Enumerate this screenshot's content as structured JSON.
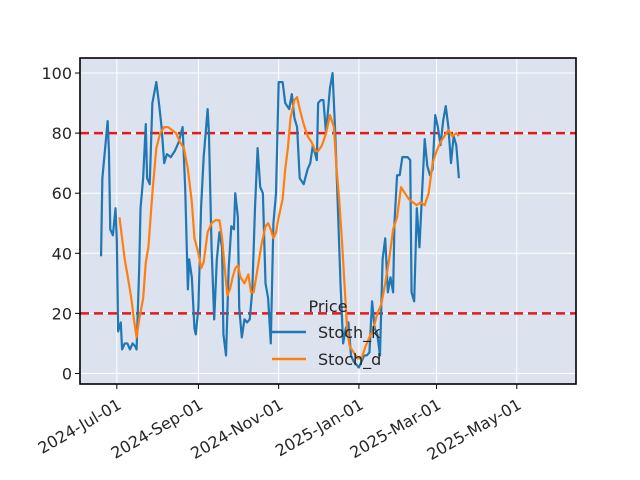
{
  "chart_data": {
    "type": "line",
    "title": "",
    "xlabel": "",
    "ylabel": "",
    "x_range": [
      "2024-06-03",
      "2025-06-15"
    ],
    "ylim": [
      -3.5,
      105
    ],
    "grid": true,
    "legend_placement": "lower-center",
    "legend_title": "Price",
    "yticks": [
      0,
      20,
      40,
      60,
      80,
      100
    ],
    "ytick_labels": [
      "0",
      "20",
      "40",
      "60",
      "80",
      "100"
    ],
    "xticks": [
      "2024-07-01",
      "2024-09-01",
      "2024-11-01",
      "2025-01-01",
      "2025-03-01",
      "2025-05-01"
    ],
    "xtick_labels": [
      "2024-Jul-01",
      "2024-Sep-01",
      "2024-Nov-01",
      "2025-Jan-01",
      "2025-Mar-01",
      "2025-May-01"
    ],
    "reference_lines": [
      {
        "y": 80,
        "color": "#e31a1c",
        "style": "dashed"
      },
      {
        "y": 20,
        "color": "#e31a1c",
        "style": "dashed"
      }
    ],
    "series": [
      {
        "name": "Stoch_k",
        "color": "#1f77b4",
        "points": [
          [
            "2024-06-19",
            39
          ],
          [
            "2024-06-20",
            65
          ],
          [
            "2024-06-24",
            84
          ],
          [
            "2024-06-25",
            74
          ],
          [
            "2024-06-26",
            48
          ],
          [
            "2024-06-28",
            46
          ],
          [
            "2024-06-30",
            55
          ],
          [
            "2024-07-01",
            44
          ],
          [
            "2024-07-02",
            14
          ],
          [
            "2024-07-04",
            17
          ],
          [
            "2024-07-05",
            8
          ],
          [
            "2024-07-07",
            10
          ],
          [
            "2024-07-09",
            10
          ],
          [
            "2024-07-11",
            8
          ],
          [
            "2024-07-13",
            10
          ],
          [
            "2024-07-15",
            9
          ],
          [
            "2024-07-16",
            8
          ],
          [
            "2024-07-18",
            35
          ],
          [
            "2024-07-19",
            55
          ],
          [
            "2024-07-21",
            65
          ],
          [
            "2024-07-23",
            83
          ],
          [
            "2024-07-24",
            65
          ],
          [
            "2024-07-26",
            63
          ],
          [
            "2024-07-28",
            90
          ],
          [
            "2024-07-31",
            97
          ],
          [
            "2024-08-02",
            90
          ],
          [
            "2024-08-04",
            82
          ],
          [
            "2024-08-06",
            70
          ],
          [
            "2024-08-08",
            73
          ],
          [
            "2024-08-11",
            72
          ],
          [
            "2024-08-14",
            74
          ],
          [
            "2024-08-17",
            77
          ],
          [
            "2024-08-20",
            82
          ],
          [
            "2024-08-22",
            61
          ],
          [
            "2024-08-24",
            28
          ],
          [
            "2024-08-25",
            38
          ],
          [
            "2024-08-27",
            32
          ],
          [
            "2024-08-29",
            15
          ],
          [
            "2024-08-30",
            13
          ],
          [
            "2024-09-01",
            22
          ],
          [
            "2024-09-03",
            55
          ],
          [
            "2024-09-05",
            72
          ],
          [
            "2024-09-08",
            88
          ],
          [
            "2024-09-09",
            80
          ],
          [
            "2024-09-11",
            42
          ],
          [
            "2024-09-13",
            18
          ],
          [
            "2024-09-15",
            38
          ],
          [
            "2024-09-17",
            47
          ],
          [
            "2024-09-19",
            42
          ],
          [
            "2024-09-20",
            13
          ],
          [
            "2024-09-22",
            6
          ],
          [
            "2024-09-24",
            35
          ],
          [
            "2024-09-26",
            49
          ],
          [
            "2024-09-28",
            48
          ],
          [
            "2024-09-29",
            60
          ],
          [
            "2024-10-01",
            52
          ],
          [
            "2024-10-02",
            22
          ],
          [
            "2024-10-04",
            12
          ],
          [
            "2024-10-06",
            18
          ],
          [
            "2024-10-08",
            17
          ],
          [
            "2024-10-10",
            18
          ],
          [
            "2024-10-12",
            28
          ],
          [
            "2024-10-14",
            55
          ],
          [
            "2024-10-16",
            75
          ],
          [
            "2024-10-18",
            62
          ],
          [
            "2024-10-20",
            60
          ],
          [
            "2024-10-22",
            30
          ],
          [
            "2024-10-24",
            25
          ],
          [
            "2024-10-26",
            10
          ],
          [
            "2024-10-28",
            50
          ],
          [
            "2024-10-30",
            60
          ],
          [
            "2024-11-01",
            97
          ],
          [
            "2024-11-04",
            97
          ],
          [
            "2024-11-06",
            90
          ],
          [
            "2024-11-09",
            88
          ],
          [
            "2024-11-11",
            93
          ],
          [
            "2024-11-13",
            85
          ],
          [
            "2024-11-15",
            82
          ],
          [
            "2024-11-17",
            65
          ],
          [
            "2024-11-20",
            63
          ],
          [
            "2024-11-23",
            68
          ],
          [
            "2024-11-25",
            70
          ],
          [
            "2024-11-27",
            76
          ],
          [
            "2024-11-30",
            71
          ],
          [
            "2024-12-01",
            90
          ],
          [
            "2024-12-03",
            91
          ],
          [
            "2024-12-05",
            91
          ],
          [
            "2024-12-07",
            80
          ],
          [
            "2024-12-10",
            95
          ],
          [
            "2024-12-12",
            100
          ],
          [
            "2024-12-14",
            80
          ],
          [
            "2024-12-16",
            55
          ],
          [
            "2024-12-18",
            30
          ],
          [
            "2024-12-20",
            10
          ],
          [
            "2024-12-22",
            15
          ],
          [
            "2024-12-24",
            17
          ],
          [
            "2024-12-26",
            6
          ],
          [
            "2024-12-28",
            4
          ],
          [
            "2024-12-30",
            3
          ],
          [
            "2025-01-01",
            2
          ],
          [
            "2025-01-03",
            4
          ],
          [
            "2025-01-05",
            6
          ],
          [
            "2025-01-07",
            6
          ],
          [
            "2025-01-09",
            7
          ],
          [
            "2025-01-11",
            24
          ],
          [
            "2025-01-13",
            15
          ],
          [
            "2025-01-15",
            13
          ],
          [
            "2025-01-17",
            6
          ],
          [
            "2025-01-19",
            38
          ],
          [
            "2025-01-21",
            45
          ],
          [
            "2025-01-23",
            27
          ],
          [
            "2025-01-25",
            32
          ],
          [
            "2025-01-27",
            27
          ],
          [
            "2025-01-28",
            50
          ],
          [
            "2025-01-30",
            66
          ],
          [
            "2025-02-01",
            66
          ],
          [
            "2025-02-03",
            72
          ],
          [
            "2025-02-05",
            72
          ],
          [
            "2025-02-07",
            72
          ],
          [
            "2025-02-09",
            71
          ],
          [
            "2025-02-10",
            27
          ],
          [
            "2025-02-12",
            24
          ],
          [
            "2025-02-14",
            55
          ],
          [
            "2025-02-16",
            42
          ],
          [
            "2025-02-18",
            60
          ],
          [
            "2025-02-20",
            78
          ],
          [
            "2025-02-22",
            69
          ],
          [
            "2025-02-24",
            66
          ],
          [
            "2025-02-26",
            68
          ],
          [
            "2025-02-28",
            86
          ],
          [
            "2025-03-02",
            82
          ],
          [
            "2025-03-04",
            76
          ],
          [
            "2025-03-06",
            84
          ],
          [
            "2025-03-08",
            89
          ],
          [
            "2025-03-10",
            82
          ],
          [
            "2025-03-12",
            70
          ],
          [
            "2025-03-14",
            79
          ],
          [
            "2025-03-16",
            76
          ],
          [
            "2025-03-18",
            65
          ]
        ]
      },
      {
        "name": "Stoch_d",
        "color": "#ff7f0e",
        "points": [
          [
            "2024-07-03",
            52
          ],
          [
            "2024-07-05",
            45
          ],
          [
            "2024-07-07",
            38
          ],
          [
            "2024-07-09",
            33
          ],
          [
            "2024-07-12",
            25
          ],
          [
            "2024-07-14",
            18
          ],
          [
            "2024-07-16",
            12
          ],
          [
            "2024-07-18",
            18
          ],
          [
            "2024-07-21",
            25
          ],
          [
            "2024-07-23",
            37
          ],
          [
            "2024-07-25",
            42
          ],
          [
            "2024-07-28",
            60
          ],
          [
            "2024-07-31",
            75
          ],
          [
            "2024-08-03",
            80
          ],
          [
            "2024-08-06",
            82
          ],
          [
            "2024-08-09",
            82
          ],
          [
            "2024-08-12",
            81
          ],
          [
            "2024-08-15",
            80
          ],
          [
            "2024-08-18",
            77
          ],
          [
            "2024-08-21",
            75
          ],
          [
            "2024-08-24",
            68
          ],
          [
            "2024-08-27",
            57
          ],
          [
            "2024-08-29",
            45
          ],
          [
            "2024-09-01",
            40
          ],
          [
            "2024-09-03",
            35
          ],
          [
            "2024-09-05",
            37
          ],
          [
            "2024-09-08",
            47
          ],
          [
            "2024-09-11",
            50
          ],
          [
            "2024-09-14",
            51
          ],
          [
            "2024-09-17",
            51
          ],
          [
            "2024-09-19",
            45
          ],
          [
            "2024-09-21",
            35
          ],
          [
            "2024-09-23",
            26
          ],
          [
            "2024-09-25",
            28
          ],
          [
            "2024-09-27",
            32
          ],
          [
            "2024-09-29",
            35
          ],
          [
            "2024-10-01",
            36
          ],
          [
            "2024-10-03",
            32
          ],
          [
            "2024-10-06",
            30
          ],
          [
            "2024-10-09",
            33
          ],
          [
            "2024-10-11",
            27
          ],
          [
            "2024-10-13",
            27
          ],
          [
            "2024-10-16",
            35
          ],
          [
            "2024-10-19",
            43
          ],
          [
            "2024-10-22",
            49
          ],
          [
            "2024-10-24",
            50
          ],
          [
            "2024-10-26",
            48
          ],
          [
            "2024-10-28",
            45
          ],
          [
            "2024-10-30",
            47
          ],
          [
            "2024-11-01",
            52
          ],
          [
            "2024-11-04",
            58
          ],
          [
            "2024-11-06",
            68
          ],
          [
            "2024-11-08",
            75
          ],
          [
            "2024-11-10",
            85
          ],
          [
            "2024-11-13",
            91
          ],
          [
            "2024-11-15",
            92
          ],
          [
            "2024-11-17",
            88
          ],
          [
            "2024-11-20",
            83
          ],
          [
            "2024-11-23",
            79
          ],
          [
            "2024-11-26",
            77
          ],
          [
            "2024-11-29",
            74
          ],
          [
            "2024-12-01",
            74
          ],
          [
            "2024-12-04",
            76
          ],
          [
            "2024-12-07",
            80
          ],
          [
            "2024-12-10",
            86
          ],
          [
            "2024-12-13",
            82
          ],
          [
            "2024-12-15",
            68
          ],
          [
            "2024-12-17",
            58
          ],
          [
            "2024-12-19",
            45
          ],
          [
            "2024-12-21",
            30
          ],
          [
            "2024-12-23",
            15
          ],
          [
            "2024-12-25",
            9
          ],
          [
            "2024-12-28",
            7
          ],
          [
            "2024-12-31",
            5
          ],
          [
            "2025-01-03",
            5
          ],
          [
            "2025-01-06",
            9
          ],
          [
            "2025-01-09",
            12
          ],
          [
            "2025-01-12",
            15
          ],
          [
            "2025-01-15",
            20
          ],
          [
            "2025-01-18",
            23
          ],
          [
            "2025-01-21",
            30
          ],
          [
            "2025-01-24",
            38
          ],
          [
            "2025-01-27",
            48
          ],
          [
            "2025-01-30",
            52
          ],
          [
            "2025-02-02",
            62
          ],
          [
            "2025-02-05",
            60
          ],
          [
            "2025-02-08",
            58
          ],
          [
            "2025-02-11",
            57
          ],
          [
            "2025-02-14",
            56
          ],
          [
            "2025-02-17",
            57
          ],
          [
            "2025-02-20",
            56
          ],
          [
            "2025-02-23",
            60
          ],
          [
            "2025-02-26",
            70
          ],
          [
            "2025-03-01",
            74
          ],
          [
            "2025-03-04",
            77
          ],
          [
            "2025-03-07",
            79
          ],
          [
            "2025-03-10",
            81
          ],
          [
            "2025-03-13",
            79
          ],
          [
            "2025-03-16",
            80
          ],
          [
            "2025-03-18",
            79
          ]
        ]
      }
    ]
  }
}
